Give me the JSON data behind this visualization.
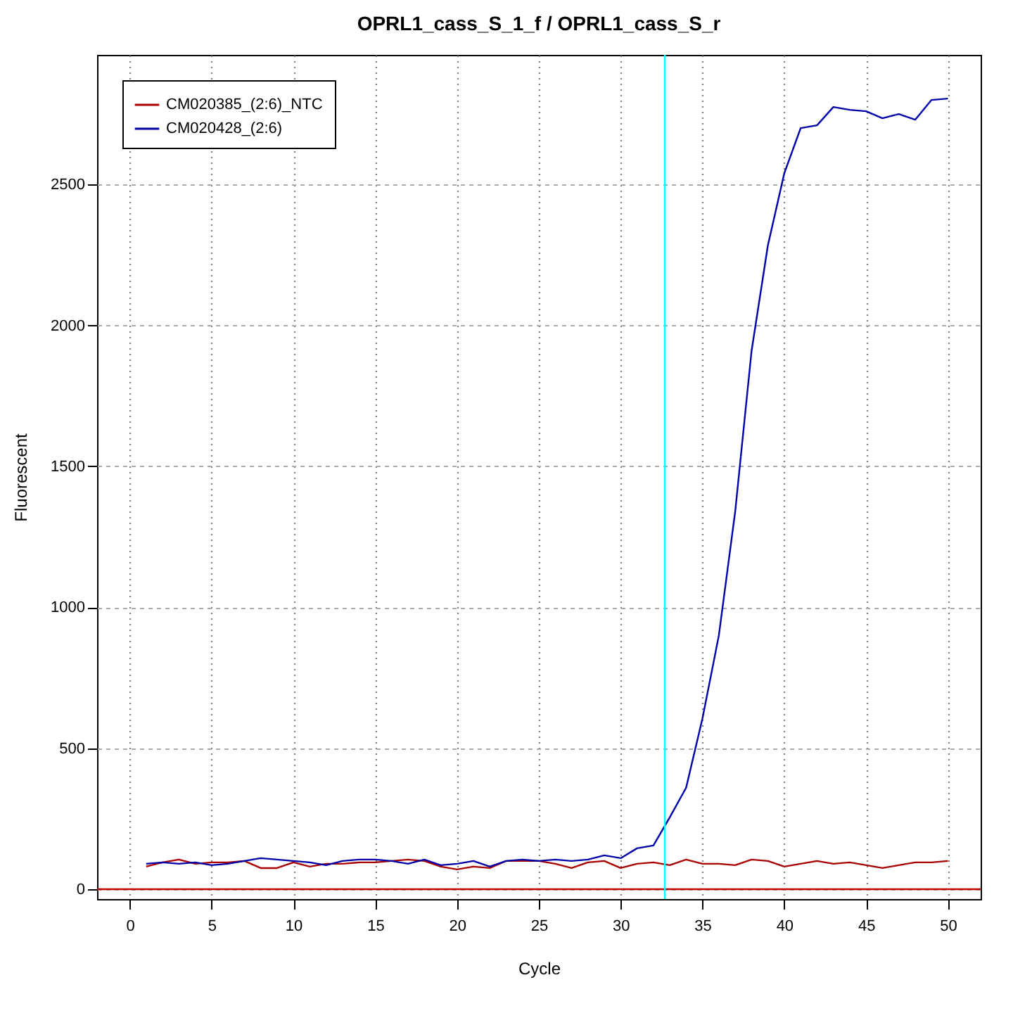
{
  "chart_data": {
    "type": "line",
    "title": "OPRL1_cass_S_1_f / OPRL1_cass_S_r",
    "xlabel": "Cycle",
    "ylabel": "Fluorescent",
    "x": [
      1,
      2,
      3,
      4,
      5,
      6,
      7,
      8,
      9,
      10,
      11,
      12,
      13,
      14,
      15,
      16,
      17,
      18,
      19,
      20,
      21,
      22,
      23,
      24,
      25,
      26,
      27,
      28,
      29,
      30,
      31,
      32,
      33,
      34,
      35,
      36,
      37,
      38,
      39,
      40,
      41,
      42,
      43,
      44,
      45,
      46,
      47,
      48,
      49,
      50
    ],
    "series": [
      {
        "name": "CM020385_(2:6)_NTC",
        "color": "#aa0000",
        "values": [
          80,
          95,
          105,
          90,
          95,
          95,
          100,
          75,
          75,
          95,
          80,
          90,
          90,
          95,
          95,
          100,
          105,
          100,
          80,
          70,
          80,
          75,
          100,
          100,
          100,
          90,
          75,
          95,
          100,
          75,
          90,
          95,
          85,
          105,
          90,
          90,
          85,
          105,
          100,
          80,
          90,
          100,
          90,
          95,
          85,
          75,
          85,
          95,
          95,
          100
        ]
      },
      {
        "name": "CM020428_(2:6)",
        "color": "#0000aa",
        "values": [
          90,
          95,
          90,
          95,
          85,
          90,
          100,
          110,
          105,
          100,
          95,
          85,
          100,
          105,
          105,
          100,
          90,
          105,
          85,
          90,
          100,
          80,
          100,
          105,
          100,
          105,
          100,
          105,
          120,
          110,
          145,
          155,
          255,
          360,
          606,
          900,
          1340,
          1910,
          2285,
          2540,
          2700,
          2710,
          2775,
          2765,
          2760,
          2735,
          2750,
          2730,
          2800,
          2805
        ]
      }
    ],
    "xlim": [
      -2,
      52
    ],
    "xticks": [
      0,
      5,
      10,
      15,
      20,
      25,
      30,
      35,
      40,
      45,
      50
    ],
    "ylim": [
      -35,
      2960
    ],
    "yticks": [
      0,
      500,
      1000,
      1500,
      2000,
      2500
    ],
    "ref_lines": [
      {
        "axis": "y",
        "value": 0,
        "color": "#c00000"
      },
      {
        "axis": "x",
        "value": 32.7,
        "color": "#00ffff"
      }
    ],
    "grid": true,
    "legend": "top left",
    "marker": "none",
    "line_style": "solid"
  }
}
